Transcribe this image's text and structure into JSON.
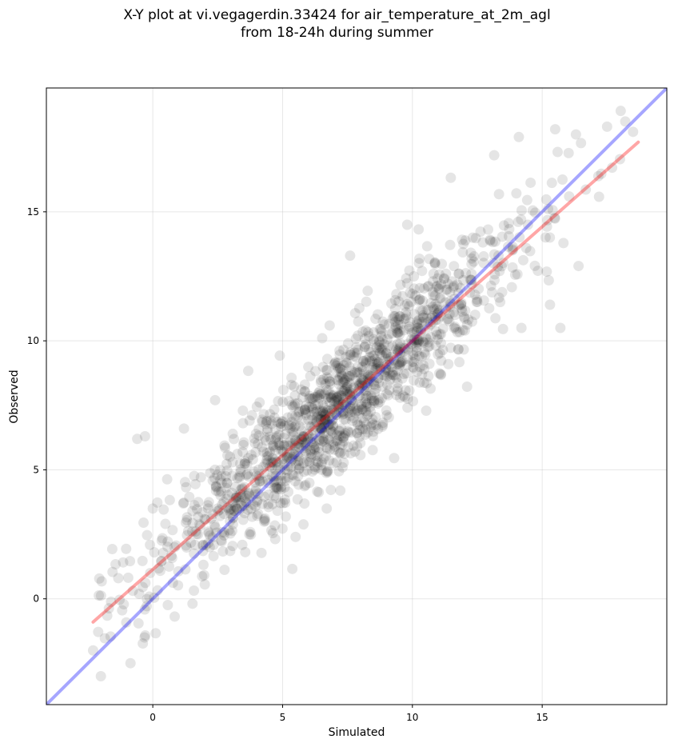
{
  "chart_data": {
    "type": "scatter",
    "title_line1": "X-Y plot at vi.vegagerdin.33424 for air_temperature_at_2m_agl",
    "title_line2": "from 18-24h during summer",
    "xlabel": "Simulated",
    "ylabel": "Observed",
    "xlim": [
      -4.1,
      19.8
    ],
    "ylim": [
      -4.1,
      19.8
    ],
    "xticks": [
      0,
      5,
      10,
      15
    ],
    "yticks": [
      0,
      5,
      10,
      15
    ],
    "grid": true,
    "point_color": "#000000",
    "point_alpha": 0.1,
    "identity_line": {
      "x": [
        -4.1,
        19.8
      ],
      "y": [
        -4.1,
        19.8
      ],
      "color": "#0000ff",
      "alpha": 0.35
    },
    "fit_line": {
      "x": [
        -2.3,
        18.7
      ],
      "y": [
        -0.9,
        17.7
      ],
      "color": "#ff0000",
      "alpha": 0.35
    },
    "outlier_points": [
      {
        "x": -2.0,
        "y": -3.0
      },
      {
        "x": -2.3,
        "y": -2.0
      },
      {
        "x": -0.6,
        "y": 6.2
      },
      {
        "x": -0.3,
        "y": 6.3
      },
      {
        "x": 1.2,
        "y": 6.6
      },
      {
        "x": 2.4,
        "y": 7.7
      },
      {
        "x": 14.1,
        "y": 17.9
      },
      {
        "x": 15.5,
        "y": 18.2
      },
      {
        "x": 16.3,
        "y": 18.0
      },
      {
        "x": 17.5,
        "y": 18.3
      },
      {
        "x": 18.2,
        "y": 18.5
      },
      {
        "x": 18.5,
        "y": 18.1
      },
      {
        "x": 14.2,
        "y": 10.5
      },
      {
        "x": 15.3,
        "y": 11.4
      },
      {
        "x": 15.7,
        "y": 10.5
      },
      {
        "x": 16.4,
        "y": 12.9
      },
      {
        "x": 7.6,
        "y": 13.3
      },
      {
        "x": 9.8,
        "y": 14.5
      },
      {
        "x": 6.7,
        "y": 3.5
      },
      {
        "x": 5.5,
        "y": 2.4
      },
      {
        "x": 0.0,
        "y": 3.5
      }
    ],
    "point_cloud": {
      "n": 1400,
      "x_mean": 7.2,
      "x_sd": 3.6,
      "x_min": -2.2,
      "x_max": 18.7,
      "slope": 0.89,
      "intercept": 1.2,
      "residual_sd": 1.25
    }
  }
}
